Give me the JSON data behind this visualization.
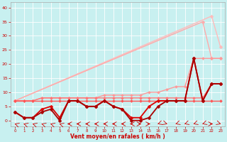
{
  "title": "",
  "xlabel": "Vent moyen/en rafales ( km/h )",
  "ylabel": "",
  "background_color": "#c8f0f0",
  "grid_color": "#ffffff",
  "xlim": [
    -0.5,
    23.5
  ],
  "ylim": [
    -2,
    42
  ],
  "yticks": [
    0,
    5,
    10,
    15,
    20,
    25,
    30,
    35,
    40
  ],
  "xticks": [
    0,
    1,
    2,
    3,
    4,
    5,
    6,
    7,
    8,
    9,
    10,
    11,
    12,
    13,
    14,
    15,
    16,
    17,
    18,
    19,
    20,
    21,
    22,
    23
  ],
  "lines": [
    {
      "x": [
        0,
        22,
        23
      ],
      "y": [
        7,
        37,
        26
      ],
      "color": "#ffbbbb",
      "lw": 1.0,
      "marker": "D",
      "ms": 2.5
    },
    {
      "x": [
        0,
        21,
        22,
        23
      ],
      "y": [
        7,
        35,
        22,
        22
      ],
      "color": "#ffaaaa",
      "lw": 1.0,
      "marker": "D",
      "ms": 2.5
    },
    {
      "x": [
        0,
        1,
        2,
        3,
        4,
        5,
        6,
        7,
        8,
        9,
        10,
        11,
        12,
        13,
        14,
        15,
        16,
        17,
        18,
        19,
        20,
        21,
        22,
        23
      ],
      "y": [
        7,
        7,
        7,
        8,
        8,
        8,
        8,
        8,
        8,
        8,
        9,
        9,
        9,
        9,
        9,
        10,
        10,
        11,
        12,
        12,
        22,
        22,
        22,
        22
      ],
      "color": "#ff9999",
      "lw": 1.0,
      "marker": "D",
      "ms": 2.0
    },
    {
      "x": [
        0,
        1,
        2,
        3,
        4,
        5,
        6,
        7,
        8,
        9,
        10,
        11,
        12,
        13,
        14,
        15,
        16,
        17,
        18,
        19,
        20,
        21,
        22,
        23
      ],
      "y": [
        7,
        7,
        7,
        8,
        8,
        8,
        8,
        8,
        8,
        8,
        8,
        8,
        8,
        8,
        8,
        8,
        8,
        8,
        8,
        8,
        8,
        8,
        13,
        13
      ],
      "color": "#ff7777",
      "lw": 1.0,
      "marker": "D",
      "ms": 2.0
    },
    {
      "x": [
        0,
        1,
        2,
        3,
        4,
        5,
        6,
        7,
        8,
        9,
        10,
        11,
        12,
        13,
        14,
        15,
        16,
        17,
        18,
        19,
        20,
        21,
        22,
        23
      ],
      "y": [
        7,
        7,
        7,
        7,
        7,
        7,
        7,
        7,
        7,
        7,
        7,
        7,
        7,
        7,
        7,
        7,
        7,
        7,
        7,
        7,
        7,
        7,
        7,
        7
      ],
      "color": "#ff5555",
      "lw": 1.0,
      "marker": "D",
      "ms": 2.0
    },
    {
      "x": [
        0,
        1,
        2,
        3,
        4,
        5,
        6,
        7,
        8,
        9,
        10,
        11,
        12,
        13,
        14,
        15,
        16,
        17,
        18,
        19,
        20,
        21,
        22,
        23
      ],
      "y": [
        3,
        1,
        1,
        4,
        5,
        1,
        7,
        7,
        5,
        5,
        7,
        5,
        4,
        1,
        1,
        5,
        7,
        7,
        7,
        7,
        22,
        7,
        13,
        13
      ],
      "color": "#dd0000",
      "lw": 1.3,
      "marker": "D",
      "ms": 2.5
    },
    {
      "x": [
        0,
        1,
        2,
        3,
        4,
        5,
        6,
        7,
        8,
        9,
        10,
        11,
        12,
        13,
        14,
        15,
        16,
        17,
        18,
        19,
        20,
        21,
        22,
        23
      ],
      "y": [
        3,
        1,
        1,
        3,
        4,
        0,
        7,
        7,
        5,
        5,
        7,
        5,
        4,
        0,
        0,
        1,
        5,
        7,
        7,
        7,
        22,
        7,
        13,
        13
      ],
      "color": "#aa0000",
      "lw": 1.3,
      "marker": "D",
      "ms": 2.5
    }
  ],
  "wind_arrows": {
    "x": [
      0,
      1,
      2,
      3,
      4,
      5,
      6,
      7,
      8,
      9,
      10,
      11,
      12,
      13,
      14,
      15,
      16,
      17,
      18,
      19,
      20,
      21,
      22,
      23
    ],
    "angles": [
      225,
      225,
      225,
      225,
      225,
      225,
      270,
      270,
      270,
      270,
      270,
      270,
      270,
      270,
      90,
      90,
      315,
      45,
      315,
      315,
      315,
      315,
      90,
      45
    ]
  }
}
